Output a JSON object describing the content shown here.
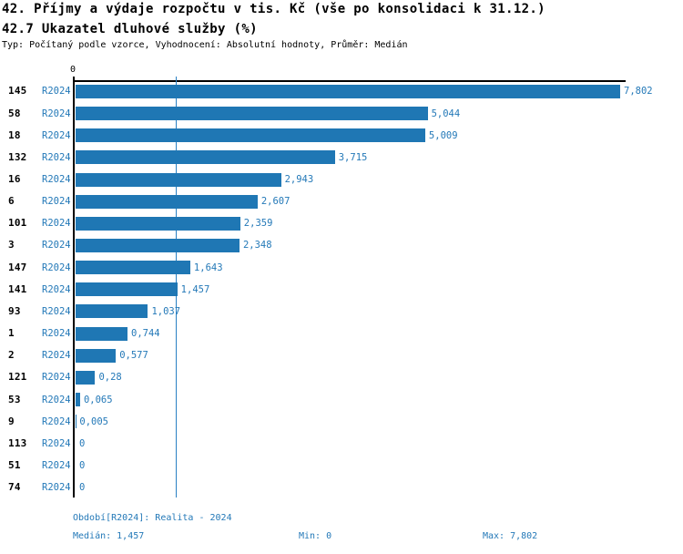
{
  "title": "42. Příjmy a výdaje rozpočtu v tis. Kč (vše po konsolidaci k 31.12.)",
  "subtitle": "42.7 Ukazatel dluhové služby (%)",
  "meta": "Typ: Počítaný podle vzorce, Vyhodnocení: Absolutní hodnoty, Průměr: Medián",
  "axis": {
    "zero_label": "0"
  },
  "colors": {
    "bar": "#1f77b4",
    "blue_text": "#2479b8",
    "axis": "#000000",
    "median_line": "#2980c4"
  },
  "footer": {
    "period": "Období[R2024]: Realita - 2024",
    "median": "Medián: 1,457",
    "min": "Min: 0",
    "max": "Max: 7,802"
  },
  "chart_data": {
    "type": "bar",
    "orientation": "horizontal",
    "title": "42.7 Ukazatel dluhové služby (%)",
    "categories": [
      "145",
      "58",
      "18",
      "132",
      "16",
      "6",
      "101",
      "3",
      "147",
      "141",
      "93",
      "1",
      "2",
      "121",
      "53",
      "9",
      "113",
      "51",
      "74"
    ],
    "period_label": "R2024",
    "values": [
      7.802,
      5.044,
      5.009,
      3.715,
      2.943,
      2.607,
      2.359,
      2.348,
      1.643,
      1.457,
      1.037,
      0.744,
      0.577,
      0.28,
      0.065,
      0.005,
      0,
      0,
      0
    ],
    "value_labels": [
      "7,802",
      "5,044",
      "5,009",
      "3,715",
      "2,943",
      "2,607",
      "2,359",
      "2,348",
      "1,643",
      "1,457",
      "1,037",
      "0,744",
      "0,577",
      "0,28",
      "0,065",
      "0,005",
      "0",
      "0",
      "0"
    ],
    "xlim": [
      0,
      7.88
    ],
    "x_tick_labels": [
      "0"
    ],
    "median": 1.457,
    "min": 0,
    "max": 7.802,
    "grid": false,
    "legend": false
  }
}
